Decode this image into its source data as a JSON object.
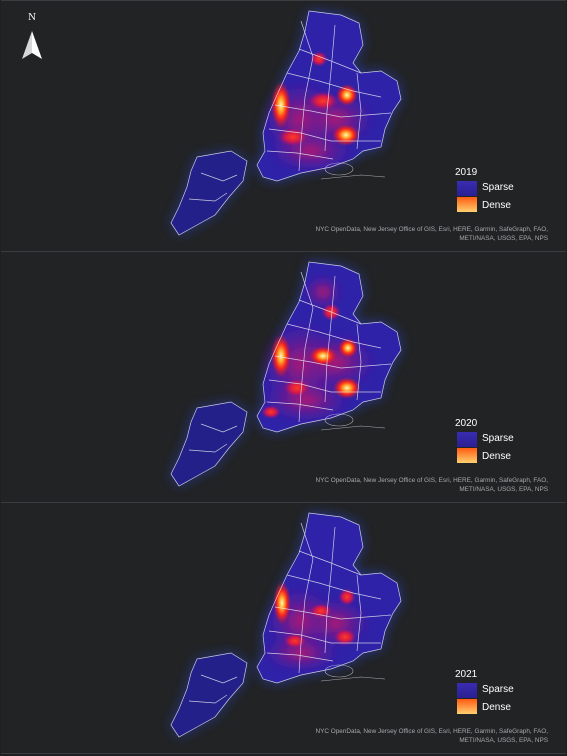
{
  "north_arrow": {
    "letter": "N",
    "icon": "north-arrow-icon"
  },
  "legend_labels": {
    "sparse": "Sparse",
    "dense": "Dense"
  },
  "attribution": "NYC OpenData, New Jersey Office of GIS, Esri, HERE, Garmin, SafeGraph, FAO, METI/NASA, USGS, EPA, NPS",
  "colors": {
    "background": "#222325",
    "sparse": "#2b1f94",
    "dense": "#ffd070",
    "boundary": "#e8e8f0"
  },
  "panels": [
    {
      "year": "2019",
      "hotspots": [
        "Manhattan",
        "Bronx",
        "Queens-east",
        "Queens-south"
      ]
    },
    {
      "year": "2020",
      "hotspots": [
        "Manhattan",
        "Bronx",
        "Queens-east",
        "Queens-south",
        "Brooklyn"
      ]
    },
    {
      "year": "2021",
      "hotspots": [
        "Manhattan",
        "Queens-east",
        "Queens-south"
      ]
    }
  ]
}
